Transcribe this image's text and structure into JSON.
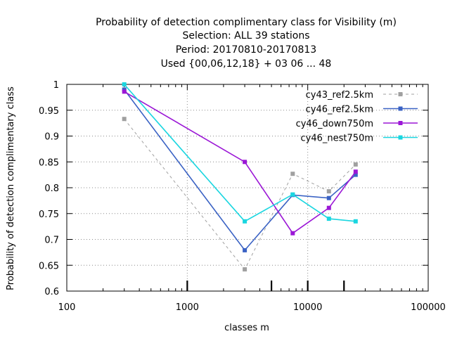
{
  "chart_data": {
    "type": "line",
    "title_lines": [
      "Probability of detection complimentary class  for Visibility (m)",
      "Selection: ALL     39 stations",
      "Period: 20170810-20170813",
      "Used {00,06,12,18} + 03 06 ... 48"
    ],
    "xlabel": "classes m",
    "ylabel": "Probability of detection complimentary class",
    "x_scale": "log",
    "xlim": [
      100,
      100000
    ],
    "ylim": [
      0.6,
      1.0
    ],
    "x_ticks": [
      100,
      1000,
      10000,
      100000
    ],
    "x_tick_labels": [
      "100",
      "1000",
      "10000",
      "100000"
    ],
    "y_ticks": [
      0.6,
      0.65,
      0.7,
      0.75,
      0.8,
      0.85,
      0.9,
      0.95,
      1.0
    ],
    "y_tick_labels": [
      "0.6",
      "0.65",
      "0.7",
      "0.75",
      "0.8",
      "0.85",
      "0.9",
      "0.95",
      "1"
    ],
    "class_markers_x": [
      1000,
      5000,
      10000,
      20000
    ],
    "grid": true,
    "legend_position": "top-right",
    "series": [
      {
        "name": "cy43_ref2.5km",
        "color": "#a0a0a0",
        "dashed": true,
        "x": [
          300,
          3000,
          7500,
          15000,
          25000
        ],
        "y": [
          0.933,
          0.642,
          0.827,
          0.793,
          0.845
        ]
      },
      {
        "name": "cy46_ref2.5km",
        "color": "#3a62c4",
        "dashed": false,
        "x": [
          300,
          3000,
          7500,
          15000,
          25000
        ],
        "y": [
          0.99,
          0.679,
          0.786,
          0.78,
          0.825
        ]
      },
      {
        "name": "cy46_down750m",
        "color": "#9b17d6",
        "dashed": false,
        "x": [
          300,
          3000,
          7500,
          15000,
          25000
        ],
        "y": [
          0.986,
          0.85,
          0.712,
          0.761,
          0.831
        ]
      },
      {
        "name": "cy46_nest750m",
        "color": "#1ad6e0",
        "dashed": false,
        "x": [
          300,
          3000,
          7500,
          15000,
          25000
        ],
        "y": [
          1.0,
          0.735,
          0.787,
          0.74,
          0.735
        ]
      }
    ]
  }
}
